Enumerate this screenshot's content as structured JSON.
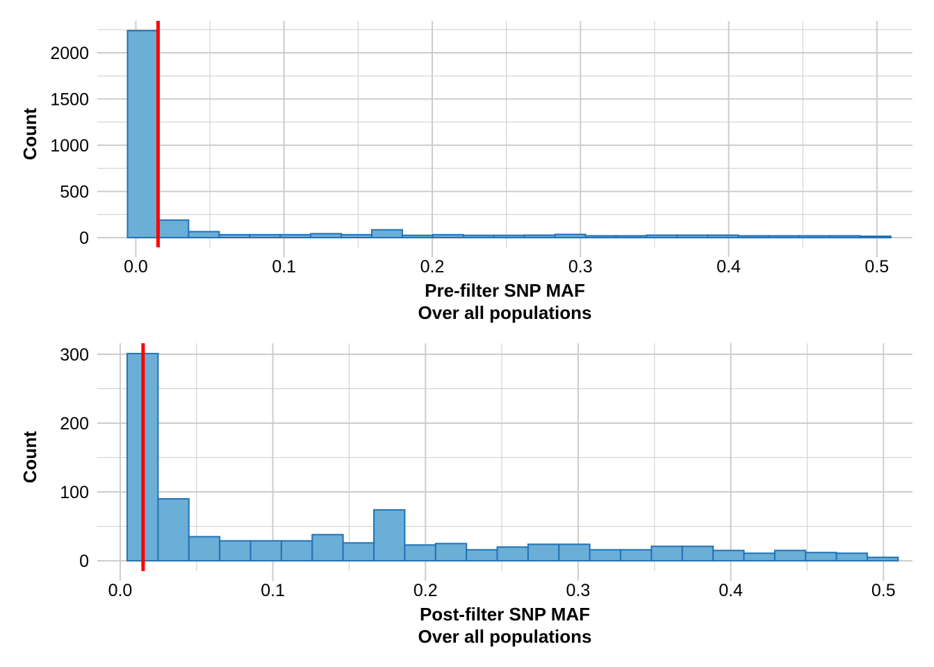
{
  "chart_data": [
    {
      "type": "bar",
      "title": "",
      "xlabel": "Pre-filter SNP MAF",
      "xlabel2": "Over all populations",
      "ylabel": "Count",
      "bin_start": -0.0056,
      "bin_width": 0.0206,
      "values": [
        2240,
        190,
        65,
        32,
        32,
        32,
        43,
        32,
        85,
        25,
        32,
        25,
        25,
        27,
        35,
        20,
        20,
        27,
        27,
        27,
        20,
        20,
        20,
        20,
        15
      ],
      "xlim": [
        -0.026,
        0.524
      ],
      "ylim": [
        -105,
        2346
      ],
      "xticks": [
        0.0,
        0.1,
        0.2,
        0.3,
        0.4,
        0.5
      ],
      "xtick_labels": [
        "0.0",
        "0.1",
        "0.2",
        "0.3",
        "0.4",
        "0.5"
      ],
      "yticks": [
        0,
        500,
        1000,
        1500,
        2000
      ],
      "ytick_labels": [
        "0",
        "500",
        "1000",
        "1500",
        "2000"
      ],
      "threshold": 0.015,
      "grid": true
    },
    {
      "type": "bar",
      "title": "",
      "xlabel": "Post-filter SNP MAF",
      "xlabel2": "Over all populations",
      "ylabel": "Count",
      "bin_start": 0.0046,
      "bin_width": 0.0202,
      "values": [
        301,
        90,
        35,
        29,
        29,
        29,
        38,
        26,
        74,
        23,
        25,
        16,
        20,
        24,
        24,
        16,
        16,
        21,
        21,
        15,
        11,
        15,
        12,
        11,
        5
      ],
      "xlim": [
        -0.015,
        0.519
      ],
      "ylim": [
        -15,
        316
      ],
      "xticks": [
        0.0,
        0.1,
        0.2,
        0.3,
        0.4,
        0.5
      ],
      "xtick_labels": [
        "0.0",
        "0.1",
        "0.2",
        "0.3",
        "0.4",
        "0.5"
      ],
      "yticks": [
        0,
        100,
        200,
        300
      ],
      "ytick_labels": [
        "0",
        "100",
        "200",
        "300"
      ],
      "threshold": 0.015,
      "grid": true
    }
  ],
  "colors": {
    "fill": "#6baed6",
    "stroke": "#2171b5",
    "threshold": "#ff0000",
    "grid": "#cccccc"
  }
}
